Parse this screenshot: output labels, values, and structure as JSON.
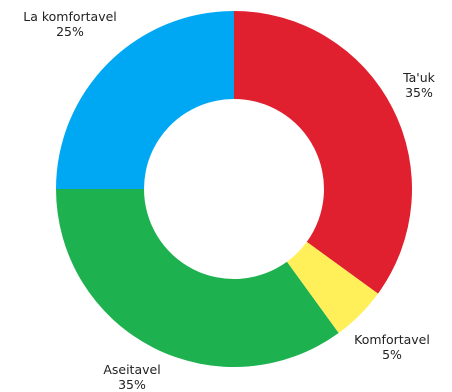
{
  "chart_data": {
    "type": "pie",
    "donut": true,
    "title": "",
    "slices": [
      {
        "label": "Ta'uk",
        "value": 35,
        "pct_label": "35%",
        "color": "#e0202e"
      },
      {
        "label": "Komfortavel",
        "value": 5,
        "pct_label": "5%",
        "color": "#fff05a"
      },
      {
        "label": "Aseitavel",
        "value": 35,
        "pct_label": "35%",
        "color": "#1eb14f"
      },
      {
        "label": "La komfortavel",
        "value": 25,
        "pct_label": "25%",
        "color": "#00a8f4"
      }
    ],
    "legend": "none",
    "start_angle_deg": 0,
    "direction": "clockwise"
  }
}
